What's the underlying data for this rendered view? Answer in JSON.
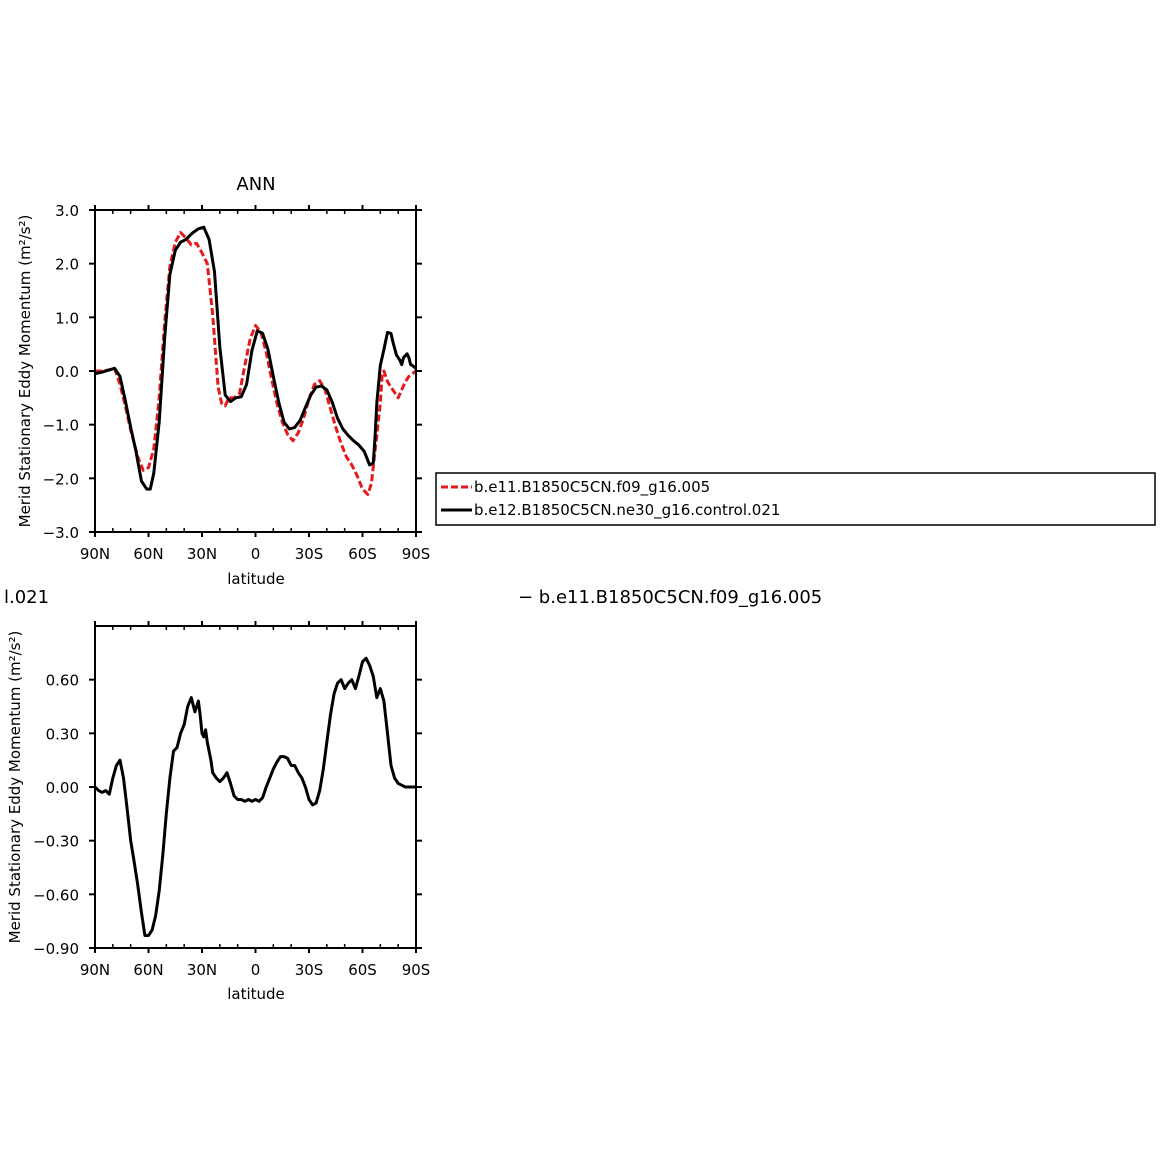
{
  "chart_data": [
    {
      "type": "line",
      "title": "ANN",
      "xlabel": "latitude",
      "ylabel": "Merid Stationary Eddy Momentum (m²/s²)",
      "x_ticks": [
        {
          "lat": 90,
          "label": "90N"
        },
        {
          "lat": 60,
          "label": "60N"
        },
        {
          "lat": 30,
          "label": "30N"
        },
        {
          "lat": 0,
          "label": "0"
        },
        {
          "lat": -30,
          "label": "30S"
        },
        {
          "lat": -60,
          "label": "60S"
        },
        {
          "lat": -90,
          "label": "90S"
        }
      ],
      "xlim": [
        90,
        -90
      ],
      "y_ticks": [
        {
          "value": 3.0,
          "label": "3.0"
        },
        {
          "value": 2.0,
          "label": "2.0"
        },
        {
          "value": 1.0,
          "label": "1.0"
        },
        {
          "value": 0.0,
          "label": "0.0"
        },
        {
          "value": -1.0,
          "label": "−1.0"
        },
        {
          "value": -2.0,
          "label": "−2.0"
        },
        {
          "value": -3.0,
          "label": "−3.0"
        }
      ],
      "ylim": [
        -3.0,
        3.0
      ],
      "legend": {
        "placement": "right",
        "entries": [
          {
            "label": "b.e11.B1850C5CN.f09_g16.005",
            "color": "#e41a1c",
            "dash": true
          },
          {
            "label": "b.e12.B1850C5CN.ne30_g16.control.021",
            "color": "#000000",
            "dash": false
          }
        ]
      },
      "series": [
        {
          "name": "b.e11.B1850C5CN.f09_g16.005",
          "color": "#e41a1c",
          "dash": true,
          "x": [
            90,
            86,
            82,
            79,
            76,
            73,
            70,
            66,
            63,
            60,
            57,
            54,
            51,
            48,
            45,
            42,
            39,
            36,
            33,
            30,
            27,
            24,
            21,
            19,
            17,
            15,
            12,
            9,
            6,
            3,
            0,
            -3,
            -6,
            -9,
            -12,
            -15,
            -18,
            -21,
            -24,
            -27,
            -30,
            -33,
            -36,
            -39,
            -42,
            -45,
            -48,
            -51,
            -54,
            -57,
            -60,
            -63,
            -65,
            -66,
            -68,
            -70,
            -71,
            -72,
            -73,
            -74,
            -76,
            -78,
            -80,
            -82,
            -84,
            -86,
            -88,
            -90
          ],
          "y": [
            0.0,
            0.0,
            0.02,
            0.05,
            -0.25,
            -0.65,
            -1.1,
            -1.6,
            -1.85,
            -1.8,
            -1.45,
            -0.5,
            0.9,
            1.95,
            2.4,
            2.58,
            2.48,
            2.35,
            2.38,
            2.2,
            2.0,
            1.05,
            -0.3,
            -0.6,
            -0.65,
            -0.5,
            -0.5,
            -0.42,
            0.1,
            0.6,
            0.85,
            0.72,
            0.35,
            -0.15,
            -0.6,
            -0.95,
            -1.18,
            -1.3,
            -1.15,
            -0.88,
            -0.52,
            -0.25,
            -0.18,
            -0.35,
            -0.7,
            -1.05,
            -1.35,
            -1.6,
            -1.75,
            -1.95,
            -2.2,
            -2.3,
            -2.1,
            -1.8,
            -1.2,
            -0.6,
            -0.1,
            0.0,
            -0.1,
            -0.2,
            -0.3,
            -0.4,
            -0.5,
            -0.35,
            -0.2,
            -0.1,
            -0.05,
            0.0
          ]
        },
        {
          "name": "b.e12.B1850C5CN.ne30_g16.control.021",
          "color": "#000000",
          "dash": false,
          "x": [
            90,
            86,
            82,
            79,
            76,
            73,
            70,
            67,
            64,
            61,
            59,
            57,
            54,
            51,
            48,
            45,
            42,
            39,
            37,
            35,
            32,
            29,
            26,
            23,
            20,
            17,
            14,
            11,
            8,
            5,
            2,
            -1,
            -4,
            -7,
            -10,
            -13,
            -16,
            -19,
            -22,
            -25,
            -28,
            -31,
            -34,
            -37,
            -40,
            -43,
            -46,
            -49,
            -52,
            -55,
            -58,
            -61,
            -64,
            -66,
            -67,
            -68,
            -70,
            -72,
            -74,
            -76,
            -77,
            -79,
            -81,
            -82,
            -83,
            -85,
            -86,
            -87,
            -88,
            -90
          ],
          "y": [
            -0.05,
            -0.02,
            0.02,
            0.05,
            -0.1,
            -0.55,
            -1.05,
            -1.5,
            -2.05,
            -2.2,
            -2.2,
            -1.9,
            -0.95,
            0.6,
            1.8,
            2.25,
            2.4,
            2.45,
            2.52,
            2.58,
            2.65,
            2.68,
            2.45,
            1.85,
            0.45,
            -0.45,
            -0.57,
            -0.5,
            -0.48,
            -0.25,
            0.38,
            0.75,
            0.7,
            0.4,
            -0.1,
            -0.58,
            -0.95,
            -1.08,
            -1.05,
            -0.92,
            -0.68,
            -0.45,
            -0.3,
            -0.28,
            -0.35,
            -0.58,
            -0.88,
            -1.08,
            -1.2,
            -1.3,
            -1.38,
            -1.5,
            -1.75,
            -1.72,
            -1.25,
            -0.6,
            0.1,
            0.4,
            0.72,
            0.7,
            0.55,
            0.3,
            0.2,
            0.12,
            0.25,
            0.32,
            0.25,
            0.12,
            0.1,
            0.05
          ]
        }
      ]
    },
    {
      "type": "line",
      "title": "",
      "xlabel": "latitude",
      "ylabel": "Merid Stationary Eddy Momentum (m²/s²)",
      "x_ticks": [
        {
          "lat": 90,
          "label": "90N"
        },
        {
          "lat": 60,
          "label": "60N"
        },
        {
          "lat": 30,
          "label": "30N"
        },
        {
          "lat": 0,
          "label": "0"
        },
        {
          "lat": -30,
          "label": "30S"
        },
        {
          "lat": -60,
          "label": "60S"
        },
        {
          "lat": -90,
          "label": "90S"
        }
      ],
      "xlim": [
        90,
        -90
      ],
      "y_ticks": [
        {
          "value": 0.6,
          "label": "0.60"
        },
        {
          "value": 0.3,
          "label": "0.30"
        },
        {
          "value": 0.0,
          "label": "0.00"
        },
        {
          "value": -0.3,
          "label": "−0.30"
        },
        {
          "value": -0.6,
          "label": "−0.60"
        },
        {
          "value": -0.9,
          "label": "−0.90"
        }
      ],
      "ylim": [
        -0.9,
        0.9
      ],
      "partial_labels": {
        "left": "l.021",
        "right": "− b.e11.B1850C5CN.f09_g16.005"
      },
      "series": [
        {
          "color": "#000000",
          "dash": false,
          "x": [
            90,
            88,
            86,
            84,
            82,
            80,
            78,
            76,
            74,
            72,
            70,
            68,
            66,
            64,
            62,
            60,
            58,
            56,
            54,
            52,
            50,
            48,
            46,
            44,
            42,
            40,
            38,
            36,
            34,
            32,
            31,
            30,
            29,
            28,
            27,
            26,
            25,
            24,
            22,
            20,
            18,
            16,
            14,
            12,
            10,
            8,
            6,
            4,
            2,
            0,
            -2,
            -4,
            -6,
            -8,
            -10,
            -12,
            -14,
            -16,
            -18,
            -20,
            -22,
            -24,
            -26,
            -28,
            -30,
            -32,
            -34,
            -36,
            -38,
            -40,
            -42,
            -44,
            -46,
            -48,
            -50,
            -52,
            -54,
            -56,
            -58,
            -60,
            -62,
            -64,
            -66,
            -68,
            -70,
            -72,
            -74,
            -76,
            -78,
            -80,
            -82,
            -84,
            -85,
            -86,
            -87,
            -88,
            -90
          ],
          "y": [
            0.0,
            -0.02,
            -0.03,
            -0.02,
            -0.04,
            0.05,
            0.12,
            0.15,
            0.05,
            -0.12,
            -0.3,
            -0.42,
            -0.55,
            -0.7,
            -0.83,
            -0.83,
            -0.8,
            -0.72,
            -0.58,
            -0.38,
            -0.15,
            0.05,
            0.2,
            0.22,
            0.3,
            0.35,
            0.45,
            0.5,
            0.42,
            0.48,
            0.4,
            0.3,
            0.28,
            0.32,
            0.25,
            0.2,
            0.15,
            0.08,
            0.05,
            0.03,
            0.05,
            0.08,
            0.02,
            -0.05,
            -0.07,
            -0.07,
            -0.08,
            -0.07,
            -0.08,
            -0.07,
            -0.08,
            -0.06,
            0.0,
            0.05,
            0.1,
            0.14,
            0.17,
            0.17,
            0.16,
            0.12,
            0.12,
            0.08,
            0.05,
            0.0,
            -0.07,
            -0.1,
            -0.09,
            -0.02,
            0.1,
            0.25,
            0.4,
            0.52,
            0.58,
            0.6,
            0.55,
            0.58,
            0.6,
            0.55,
            0.62,
            0.7,
            0.72,
            0.68,
            0.62,
            0.5,
            0.55,
            0.48,
            0.3,
            0.12,
            0.05,
            0.02,
            0.01,
            0.0,
            0.0,
            0.0,
            0.0,
            0.0,
            0.0
          ]
        }
      ]
    }
  ]
}
